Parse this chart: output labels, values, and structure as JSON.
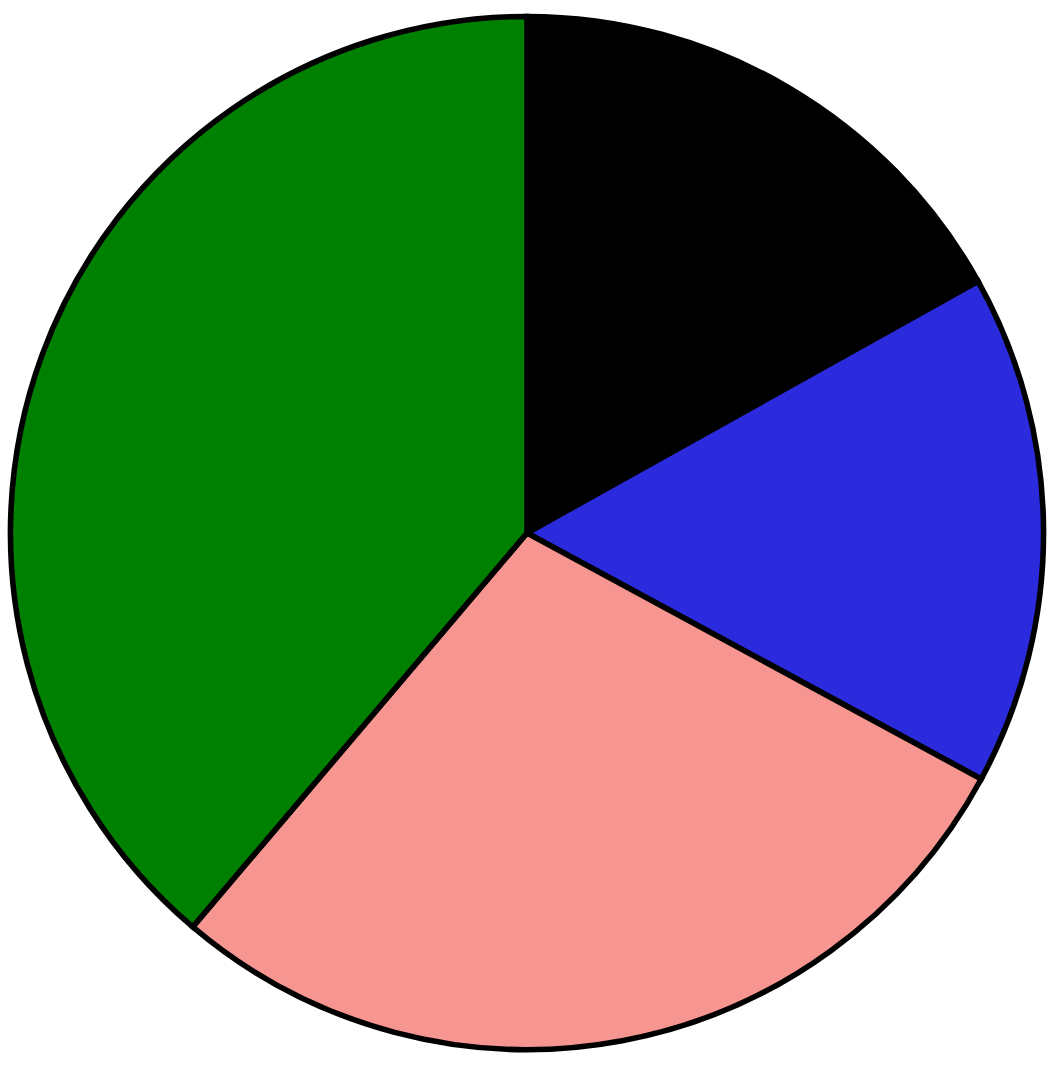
{
  "chart_data": {
    "type": "pie",
    "categories": [
      null,
      null,
      null,
      null
    ],
    "values": [
      16.9,
      16.0,
      28.3,
      38.8
    ],
    "colors": [
      "#000000",
      "#2b2bdd",
      "#f79690",
      "#008000"
    ]
  }
}
